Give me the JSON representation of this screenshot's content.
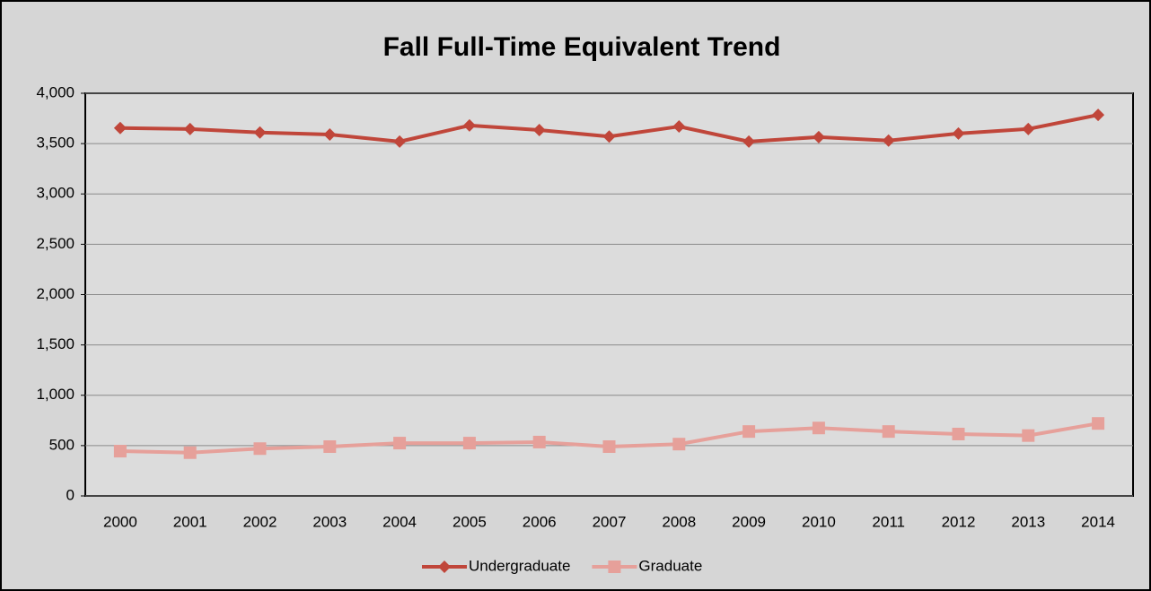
{
  "chart_data": {
    "type": "line",
    "title": "Fall Full-Time Equivalent Trend",
    "categories": [
      "2000",
      "2001",
      "2002",
      "2003",
      "2004",
      "2005",
      "2006",
      "2007",
      "2008",
      "2009",
      "2010",
      "2011",
      "2012",
      "2013",
      "2014"
    ],
    "series": [
      {
        "name": "Undergraduate",
        "color": "#c0463a",
        "marker": "diamond",
        "values": [
          3655,
          3645,
          3610,
          3590,
          3520,
          3680,
          3635,
          3570,
          3670,
          3520,
          3565,
          3530,
          3600,
          3645,
          3785
        ]
      },
      {
        "name": "Graduate",
        "color": "#e6a09a",
        "marker": "square",
        "values": [
          445,
          430,
          470,
          490,
          525,
          525,
          535,
          490,
          515,
          640,
          675,
          640,
          615,
          600,
          720
        ]
      }
    ],
    "ylim": [
      0,
      4000
    ],
    "yticks": [
      0,
      500,
      {
        "value": 1000,
        "label": "1,000"
      },
      {
        "value": 1500,
        "label": "1,500"
      },
      {
        "value": 2000,
        "label": "2,000"
      },
      {
        "value": 2500,
        "label": "2,500"
      },
      {
        "value": 3000,
        "label": "3,000"
      },
      {
        "value": 3500,
        "label": "3,500"
      },
      {
        "value": 4000,
        "label": "4,000"
      }
    ],
    "grid": true,
    "legend": "bottom"
  }
}
